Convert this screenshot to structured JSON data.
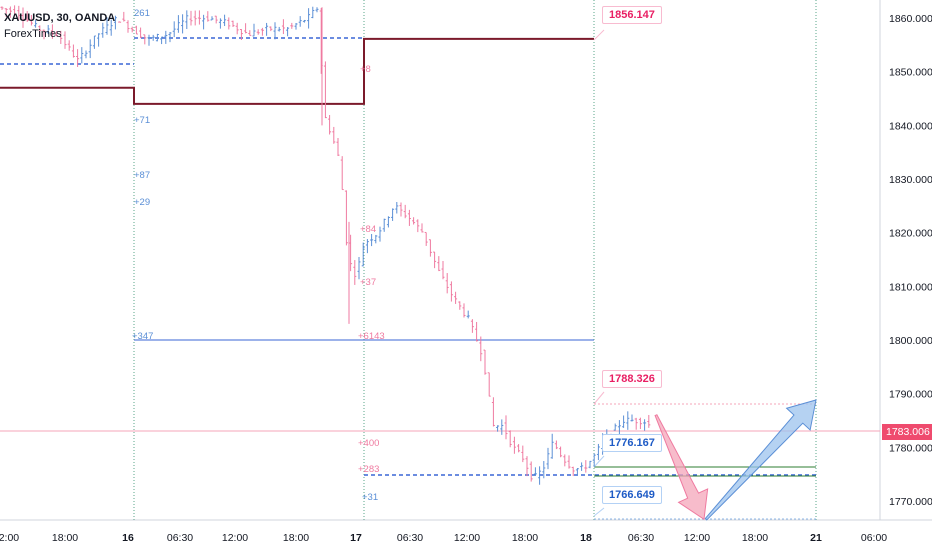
{
  "legend": {
    "symbol": "XAUUSD, 30, OANDA",
    "indicator": "ForexTimes"
  },
  "colors": {
    "up": "#5b8fd6",
    "down": "#ef7aa0",
    "accent_red": "#e91e63",
    "accent_blue": "#1e5bc6",
    "level_dark": "#7b1a2b",
    "level_blue": "#3a66d6",
    "level_green": "#2e7d32"
  },
  "callouts": {
    "high": "1856.147",
    "mid": "1788.326",
    "low_upper": "1776.167",
    "low": "1766.649"
  },
  "current_price": "1783.006",
  "level_labels": {
    "l1": "261",
    "l2": "+8",
    "l3": "+71",
    "l4": "+87",
    "l5": "+29",
    "l6": "+84",
    "l7": "+37",
    "l8": "+347",
    "l9": "+6143",
    "l10": "+400",
    "l11": "+283",
    "l12": "+31"
  },
  "chart_data": {
    "type": "candlestick",
    "y_axis": {
      "ticks": [
        "1860.000",
        "1850.000",
        "1840.000",
        "1830.000",
        "1820.000",
        "1810.000",
        "1800.000",
        "1790.000",
        "1780.000",
        "1770.000"
      ],
      "ylim": [
        1765,
        1862
      ]
    },
    "x_axis": {
      "ticks": [
        "12:00",
        "18:00",
        "16",
        "06:30",
        "12:00",
        "18:00",
        "17",
        "06:30",
        "12:00",
        "18:00",
        "18",
        "06:30",
        "12:00",
        "18:00",
        "21",
        "06:00"
      ]
    },
    "levels": [
      {
        "name": "upper-resistance-left",
        "value": 1847.0
      },
      {
        "name": "upper-resistance-mid",
        "value": 1844.0
      },
      {
        "name": "upper-resistance-right",
        "value": 1856.1
      },
      {
        "name": "support-blue",
        "value": 1800.0
      },
      {
        "name": "support-green",
        "value": 1775.8
      }
    ],
    "projection": {
      "from": 1786.0,
      "down_to": 1766.6,
      "up_to": 1788.3
    }
  }
}
